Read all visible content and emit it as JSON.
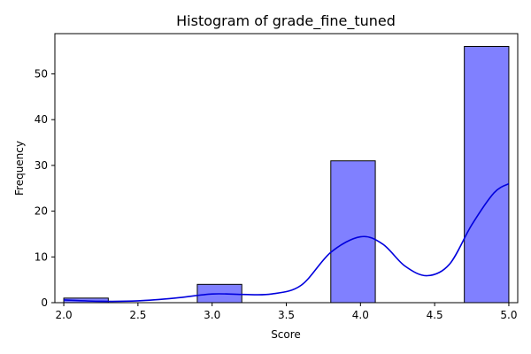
{
  "chart_data": {
    "type": "bar",
    "title": "Histogram of grade_fine_tuned",
    "xlabel": "Score",
    "ylabel": "Frequency",
    "xlim": [
      1.94,
      5.06
    ],
    "ylim": [
      0,
      58.8
    ],
    "xticks": [
      "2.0",
      "2.5",
      "3.0",
      "3.5",
      "4.0",
      "4.5",
      "5.0"
    ],
    "yticks": [
      "0",
      "10",
      "20",
      "30",
      "40",
      "50"
    ],
    "bins": [
      {
        "x0": 2.0,
        "x1": 2.3,
        "count": 1
      },
      {
        "x0": 2.3,
        "x1": 2.6,
        "count": 0
      },
      {
        "x0": 2.6,
        "x1": 2.9,
        "count": 0
      },
      {
        "x0": 2.9,
        "x1": 3.2,
        "count": 4
      },
      {
        "x0": 3.2,
        "x1": 3.5,
        "count": 0
      },
      {
        "x0": 3.5,
        "x1": 3.8,
        "count": 0
      },
      {
        "x0": 3.8,
        "x1": 4.1,
        "count": 31
      },
      {
        "x0": 4.1,
        "x1": 4.4,
        "count": 0
      },
      {
        "x0": 4.4,
        "x1": 4.7,
        "count": 0
      },
      {
        "x0": 4.7,
        "x1": 5.0,
        "count": 56
      }
    ],
    "kde": {
      "x": [
        2.0,
        2.25,
        2.5,
        2.75,
        3.0,
        3.2,
        3.4,
        3.6,
        3.8,
        4.0,
        4.15,
        4.3,
        4.45,
        4.6,
        4.75,
        4.9,
        5.0
      ],
      "y": [
        0.6,
        0.3,
        0.4,
        1.0,
        1.9,
        1.8,
        1.9,
        3.8,
        11.0,
        14.4,
        12.8,
        8.0,
        5.9,
        8.4,
        17.0,
        24.0,
        26.0
      ]
    },
    "bar_color": "#8080ff",
    "bar_edge_color": "#000000",
    "kde_color": "#0000dd",
    "grid": false
  }
}
